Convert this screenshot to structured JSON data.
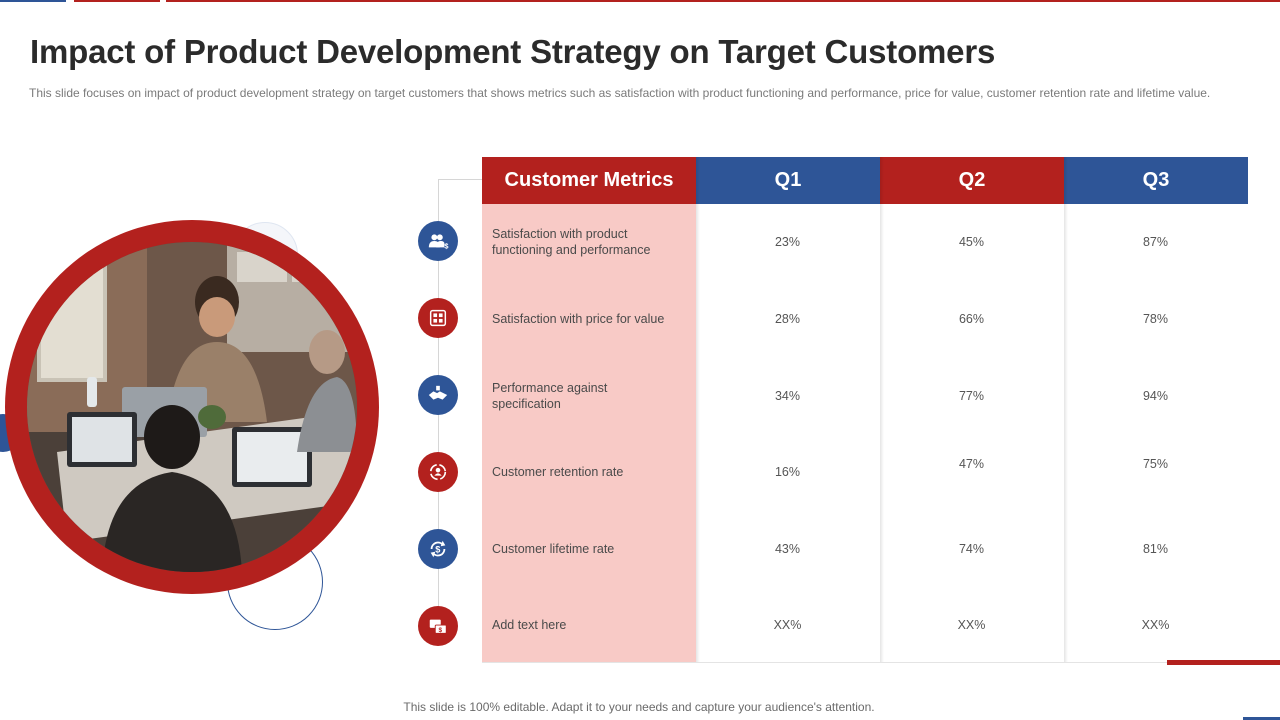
{
  "slide": {
    "title": "Impact of Product Development Strategy on Target Customers",
    "subtitle": "This slide focuses on impact of product development  strategy on target customers that shows metrics such as satisfaction with product functioning and performance,  price for value,  customer retention rate and lifetime value.",
    "footer": "This slide is 100% editable. Adapt it to your needs and capture your audience's attention."
  },
  "colors": {
    "red": "#b3211e",
    "blue": "#2e5597",
    "pink": "#f8cac6",
    "title": "#2b2b2b"
  },
  "table": {
    "headers": [
      "Customer Metrics",
      "Q1",
      "Q2",
      "Q3"
    ],
    "rows": [
      {
        "metric": "Satisfaction with product functioning and performance",
        "icon": "people-dollar-icon",
        "q1": "23%",
        "q2": "45%",
        "q3": "87%"
      },
      {
        "metric": "Satisfaction with price for value",
        "icon": "price-tags-icon",
        "q1": "28%",
        "q2": "66%",
        "q3": "78%"
      },
      {
        "metric": "Performance against specification",
        "icon": "handshake-icon",
        "q1": "34%",
        "q2": "77%",
        "q3": "94%"
      },
      {
        "metric": "Customer retention rate",
        "icon": "retention-cycle-icon",
        "q1": "16%",
        "q2": "47%",
        "q3": "75%"
      },
      {
        "metric": "Customer lifetime rate",
        "icon": "dollar-cycle-icon",
        "q1": "43%",
        "q2": "74%",
        "q3": "81%"
      },
      {
        "metric": "Add text here",
        "icon": "money-transfer-icon",
        "q1": "XX%",
        "q2": "XX%",
        "q3": "XX%"
      }
    ]
  }
}
